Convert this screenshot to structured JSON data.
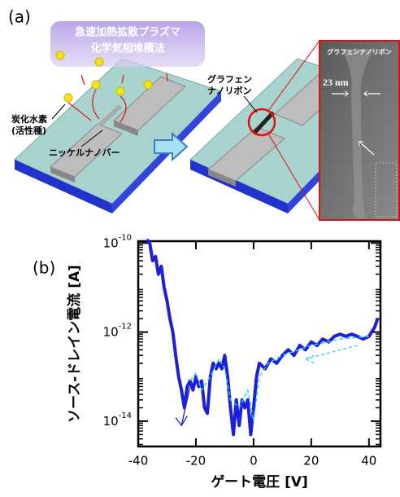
{
  "panel_a": {
    "label": "(a)",
    "process": [
      "急速加熱拡散プラズマ",
      "化学気相堆積法"
    ],
    "hydrocarbon": [
      "炭化水素",
      "(活性種)"
    ],
    "nickel_nanobar": "ニッケルナノバー",
    "gnr_label": [
      "グラフェン",
      "ナノリボン"
    ],
    "sem_title": "グラフェンナノリボン",
    "width": "23 nm"
  },
  "chart_data": {
    "type": "line",
    "panel_label": "(b)",
    "x_label": "ゲート電圧 [V]",
    "y_label": "ソース-ドレイン電流 [A]",
    "log_y": true,
    "minor_ticks": true,
    "xlim": [
      -40,
      44
    ],
    "xticks": [
      -40,
      -20,
      0,
      20,
      40
    ],
    "ylim": [
      2.7e-15,
      1.1e-10
    ],
    "yticks": [
      {
        "value": 1e-10,
        "label": "10-10"
      },
      {
        "value": 1e-12,
        "label": "10-12"
      },
      {
        "value": 1e-14,
        "label": "10-14"
      }
    ],
    "series": [
      {
        "color": "#1f1fd6",
        "dash": false,
        "x": [
          -37,
          -36,
          -35,
          -34,
          -33,
          -32,
          -31,
          -30,
          -29,
          -28,
          -27,
          -26,
          -25,
          -24,
          -23,
          -22,
          -21,
          -20,
          -19,
          -18,
          -17,
          -16,
          -15,
          -14,
          -13,
          -12,
          -11,
          -10,
          -9,
          -8,
          -7,
          -6,
          -5,
          -4,
          -3,
          -2,
          -1,
          0,
          1,
          2,
          4,
          6,
          8,
          10,
          12,
          14,
          16,
          18,
          20,
          22,
          24,
          26,
          28,
          30,
          32,
          34,
          36,
          38,
          40,
          42,
          43
        ],
        "values": [
          1.2e-10,
          1e-10,
          4e-11,
          5e-11,
          2e-11,
          3e-11,
          1e-11,
          5e-12,
          2e-12,
          1e-12,
          3e-13,
          1e-13,
          5e-14,
          2e-14,
          6e-14,
          8e-14,
          5e-14,
          1e-13,
          6e-14,
          8e-14,
          2e-14,
          1.5e-14,
          1e-13,
          2e-13,
          1.5e-13,
          2e-13,
          1.5e-13,
          3e-13,
          1e-13,
          2e-14,
          5e-15,
          3e-14,
          8e-15,
          3e-14,
          2e-14,
          3e-14,
          5e-15,
          2e-14,
          1e-13,
          2e-13,
          1.5e-13,
          2.5e-13,
          2e-13,
          3e-13,
          4e-13,
          3e-13,
          5e-13,
          4e-13,
          6e-13,
          5e-13,
          7e-13,
          6e-13,
          8e-13,
          9e-13,
          8e-13,
          9e-13,
          8e-13,
          7e-13,
          8e-13,
          1.3e-12,
          2e-12
        ]
      },
      {
        "color": "#33ccff",
        "dash": true,
        "x": [
          -22,
          -20,
          -18,
          -15,
          -12,
          -10,
          -8,
          -5,
          -2,
          0,
          2,
          5,
          10,
          20,
          30,
          40
        ],
        "values": [
          8e-14,
          1.2e-13,
          5e-14,
          1e-13,
          2.5e-13,
          1.5e-13,
          3e-14,
          2e-14,
          5e-14,
          1e-14,
          1e-13,
          2e-13,
          3e-13,
          5e-13,
          7e-13,
          8e-13
        ]
      }
    ]
  }
}
